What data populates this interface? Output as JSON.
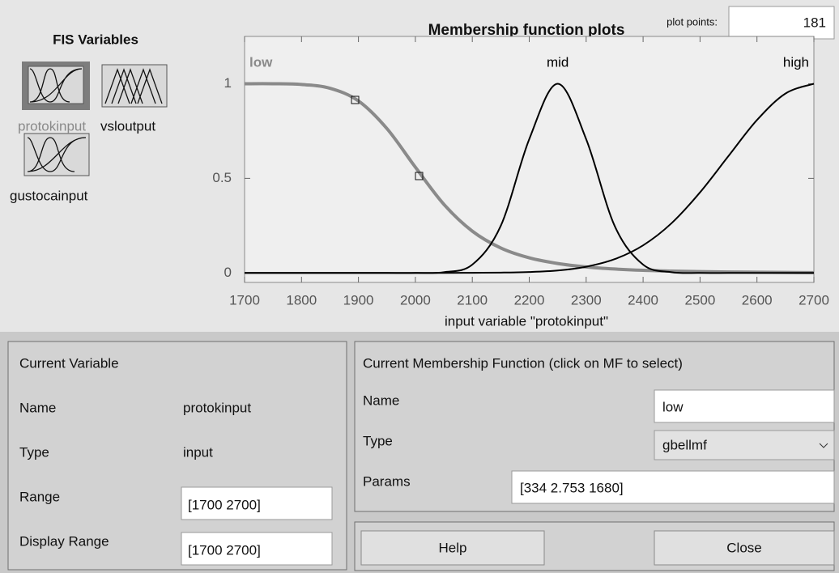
{
  "fis_variables": {
    "title": "FIS Variables",
    "variables": [
      "protokinput",
      "vsloutput",
      "gustocainput"
    ]
  },
  "plot_points": {
    "label": "plot points:",
    "value": "181"
  },
  "chart_data": {
    "type": "line",
    "title": "Membership function plots",
    "x_label": "input variable \"protokinput\"",
    "x": [
      1700,
      1750,
      1800,
      1850,
      1900,
      1950,
      2000,
      2050,
      2100,
      2150,
      2200,
      2250,
      2300,
      2350,
      2400,
      2450,
      2500,
      2550,
      2600,
      2650,
      2700
    ],
    "series": [
      {
        "name": "low",
        "color": "#8a8a8a",
        "values": [
          1,
          1,
          0.996,
          0.976,
          0.909,
          0.763,
          0.559,
          0.363,
          0.221,
          0.132,
          0.08,
          0.05,
          0.032,
          0.021,
          0.014,
          0.01,
          0.007,
          0.005,
          0.004,
          0.003,
          0.002
        ]
      },
      {
        "name": "mid",
        "color": "#000000",
        "values": [
          0,
          0,
          0,
          0,
          0,
          0,
          0,
          0.004,
          0.044,
          0.249,
          0.707,
          1,
          0.707,
          0.249,
          0.044,
          0.004,
          0,
          0,
          0,
          0,
          0
        ]
      },
      {
        "name": "high",
        "color": "#000000",
        "values": [
          0,
          0,
          0,
          0,
          0,
          0,
          0,
          0,
          0.001,
          0.002,
          0.005,
          0.013,
          0.033,
          0.073,
          0.146,
          0.263,
          0.426,
          0.618,
          0.808,
          0.948,
          1
        ]
      }
    ],
    "xlim": [
      1700,
      2700
    ],
    "xticks": [
      1700,
      1800,
      1900,
      2000,
      2100,
      2200,
      2300,
      2400,
      2500,
      2600,
      2700
    ],
    "ylim": [
      -0.05,
      1.25
    ],
    "yticks": [
      0,
      0.5,
      1
    ]
  },
  "current_variable": {
    "title": "Current Variable",
    "name_label": "Name",
    "name": "protokinput",
    "type_label": "Type",
    "type": "input",
    "range_label": "Range",
    "range": "[1700 2700]",
    "display_range_label": "Display Range",
    "display_range": "[1700 2700]"
  },
  "current_mf": {
    "title": "Current Membership Function (click on MF to select)",
    "name_label": "Name",
    "name": "low",
    "type_label": "Type",
    "type": "gbellmf",
    "params_label": "Params",
    "params": "[334 2.753 1680]"
  },
  "buttons": [
    "Help",
    "Close"
  ]
}
